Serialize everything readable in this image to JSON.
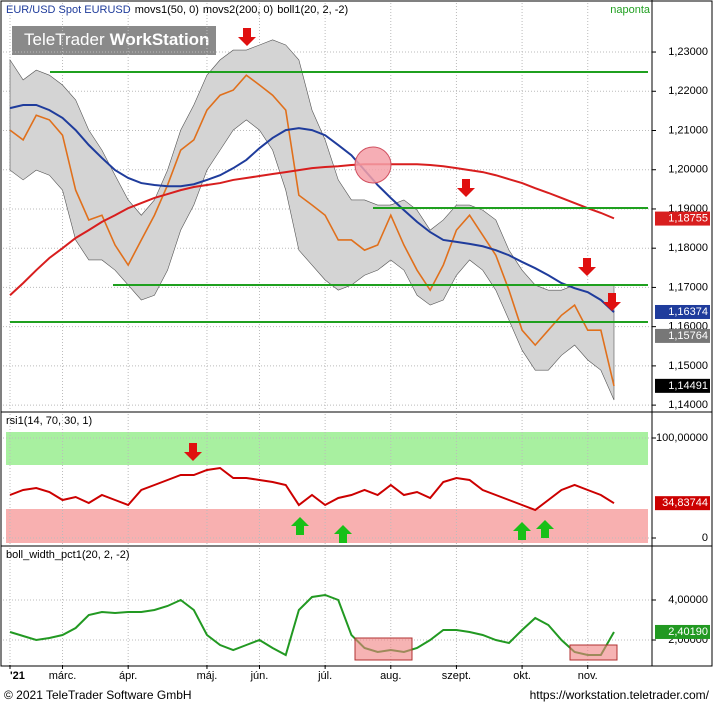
{
  "header": {
    "frequency": "naponta",
    "logo_light": "TeleTrader",
    "logo_bold": "WorkStation"
  },
  "footer": {
    "copyright": "© 2021 TeleTrader Software GmbH",
    "url": "https://workstation.teletrader.com/"
  },
  "chart_data": [
    {
      "type": "line",
      "ylim": [
        1.1385,
        1.2425
      ],
      "yticks": [
        {
          "value": 1.14,
          "label": "1,14000"
        },
        {
          "value": 1.15,
          "label": "1,15000"
        },
        {
          "value": 1.16,
          "label": "1,16000"
        },
        {
          "value": 1.17,
          "label": "1,17000"
        },
        {
          "value": 1.18,
          "label": "1,18000"
        },
        {
          "value": 1.19,
          "label": "1,19000"
        },
        {
          "value": 1.2,
          "label": "1,20000"
        },
        {
          "value": 1.21,
          "label": "1,21000"
        },
        {
          "value": 1.22,
          "label": "1,22000"
        },
        {
          "value": 1.23,
          "label": "1,23000"
        }
      ],
      "grid": true,
      "band": {
        "name": "boll1(20, 2, -2)",
        "color": "#d4d4d4",
        "upper": [
          1.228,
          1.2229,
          1.2254,
          1.2241,
          1.2216,
          1.2178,
          1.2101,
          1.205,
          1.1986,
          1.1923,
          1.1884,
          1.1923,
          1.1999,
          1.2101,
          1.2165,
          1.2241,
          1.228,
          1.2305,
          1.2305,
          1.2318,
          1.2331,
          1.2318,
          1.228,
          1.2152,
          1.2076,
          1.1974,
          1.1923,
          1.1923,
          1.191,
          1.191,
          1.1923,
          1.1897,
          1.1846,
          1.1872,
          1.191,
          1.191,
          1.1897,
          1.1872,
          1.1795,
          1.1744,
          1.1706,
          1.1693,
          1.1693,
          1.1706,
          1.1706,
          1.1706,
          1.1706
        ],
        "lower": [
          1.1999,
          1.1974,
          1.1999,
          1.1986,
          1.1948,
          1.1821,
          1.177,
          1.177,
          1.1744,
          1.1706,
          1.1668,
          1.168,
          1.1744,
          1.1846,
          1.191,
          1.1999,
          1.205,
          1.2101,
          1.2127,
          1.2101,
          1.205,
          1.1948,
          1.1795,
          1.1757,
          1.1719,
          1.1693,
          1.1706,
          1.1731,
          1.1744,
          1.177,
          1.1744,
          1.168,
          1.1655,
          1.1668,
          1.1731,
          1.177,
          1.1744,
          1.1693,
          1.1617,
          1.154,
          1.1489,
          1.1489,
          1.1527,
          1.1553,
          1.1515,
          1.1489,
          1.1413
        ],
        "middle_last": {
          "value": 1.15764,
          "label": "1,15764"
        }
      },
      "series": [
        {
          "name": "EUR/USD Spot EURUSD",
          "color": "#e0701c",
          "label_color": "#000000",
          "values": [
            1.2101,
            1.2076,
            1.2139,
            1.2127,
            1.2088,
            1.1948,
            1.1872,
            1.1884,
            1.1808,
            1.1757,
            1.1821,
            1.1884,
            1.1961,
            1.205,
            1.2076,
            1.2152,
            1.219,
            1.2203,
            1.2241,
            1.2216,
            1.219,
            1.2152,
            1.1935,
            1.191,
            1.1884,
            1.1821,
            1.1821,
            1.1795,
            1.1808,
            1.1884,
            1.1808,
            1.1744,
            1.1693,
            1.1757,
            1.1846,
            1.1884,
            1.1833,
            1.1782,
            1.1693,
            1.1591,
            1.1553,
            1.1591,
            1.1629,
            1.1655,
            1.1591,
            1.1591,
            1.1449
          ],
          "last": {
            "value": 1.14491,
            "label": "1,14491"
          }
        },
        {
          "name": "movs1(50, 0)",
          "color": "#1f3c9c",
          "values": [
            1.2157,
            1.2165,
            1.2165,
            1.2152,
            1.2132,
            1.2101,
            1.2063,
            1.203,
            1.1999,
            1.1979,
            1.1966,
            1.1961,
            1.1958,
            1.1958,
            1.1963,
            1.1974,
            1.1986,
            1.2004,
            1.2025,
            1.2055,
            1.2081,
            1.2101,
            1.2106,
            1.2101,
            1.2088,
            1.2063,
            1.2037,
            1.1999,
            1.1961,
            1.1928,
            1.1897,
            1.1867,
            1.1841,
            1.1821,
            1.1816,
            1.1811,
            1.1805,
            1.1795,
            1.1782,
            1.1765,
            1.1749,
            1.1731,
            1.1711,
            1.1698,
            1.1688,
            1.1668,
            1.1637
          ],
          "last": {
            "value": 1.16374,
            "label": "1,16374"
          }
        },
        {
          "name": "movs2(200, 0)",
          "color": "#d81e1e",
          "values": [
            1.168,
            1.1711,
            1.1744,
            1.1775,
            1.18,
            1.1826,
            1.1846,
            1.1867,
            1.1884,
            1.1902,
            1.1915,
            1.1928,
            1.1938,
            1.1948,
            1.1956,
            1.1961,
            1.1966,
            1.1974,
            1.1979,
            1.1984,
            1.1989,
            1.1994,
            1.1999,
            1.2004,
            1.2007,
            1.2009,
            1.2012,
            1.2014,
            1.2014,
            1.2014,
            1.2014,
            1.2014,
            1.2012,
            1.2009,
            1.2004,
            1.1999,
            1.1994,
            1.1986,
            1.1976,
            1.1966,
            1.1953,
            1.1941,
            1.1928,
            1.1915,
            1.1902,
            1.189,
            1.1876
          ],
          "last": {
            "value": 1.18755,
            "label": "1,18755"
          }
        }
      ]
    },
    {
      "type": "line",
      "ylim": [
        -7,
        124
      ],
      "yticks": [
        0,
        {
          "value": 100,
          "label": "100,00000"
        }
      ],
      "grid": true,
      "series": [
        {
          "name": "rsi1(14, 70, 30, 1)",
          "color": "#cc0000",
          "values": [
            43,
            48,
            50,
            46,
            38,
            41,
            35,
            43,
            38,
            33,
            48,
            53,
            58,
            63,
            63,
            68,
            70,
            60,
            60,
            58,
            56,
            53,
            33,
            43,
            33,
            40,
            43,
            48,
            43,
            53,
            43,
            46,
            40,
            56,
            60,
            58,
            48,
            43,
            38,
            33,
            28,
            38,
            48,
            53,
            48,
            43,
            34.83744
          ],
          "last": {
            "value": 34.83744,
            "label": "34,83744"
          }
        }
      ]
    },
    {
      "type": "line",
      "ylim": [
        0.75,
        6.6
      ],
      "yticks": [
        {
          "value": 2,
          "label": "2,00000"
        },
        {
          "value": 4,
          "label": "4,00000"
        }
      ],
      "grid": true,
      "categories": [
        "'21",
        null,
        null,
        null,
        "márc.",
        null,
        null,
        null,
        null,
        "ápr.",
        null,
        null,
        null,
        null,
        null,
        "máj.",
        null,
        null,
        null,
        "jún.",
        null,
        null,
        null,
        null,
        "júl.",
        null,
        null,
        null,
        null,
        "aug.",
        null,
        null,
        null,
        null,
        "szept.",
        null,
        null,
        null,
        null,
        "okt.",
        null,
        null,
        null,
        null,
        "nov.",
        null,
        null
      ],
      "series": [
        {
          "name": "boll_width_pct1(20, 2, -2)",
          "color": "#229922",
          "values": [
            2.4,
            2.2,
            2.0,
            2.1,
            2.25,
            2.6,
            3.25,
            3.4,
            3.35,
            3.4,
            3.4,
            3.5,
            3.7,
            4.0,
            3.5,
            2.25,
            1.75,
            1.5,
            1.75,
            2.0,
            1.6,
            1.25,
            3.5,
            4.15,
            4.25,
            4.0,
            2.25,
            1.6,
            1.4,
            1.5,
            1.4,
            1.6,
            2.0,
            2.5,
            2.5,
            2.4,
            2.25,
            2.0,
            1.85,
            2.5,
            3.1,
            2.75,
            2.0,
            1.4,
            1.25,
            1.25,
            2.4019
          ],
          "last": {
            "value": 2.4019,
            "label": "2,40190"
          }
        }
      ]
    }
  ]
}
